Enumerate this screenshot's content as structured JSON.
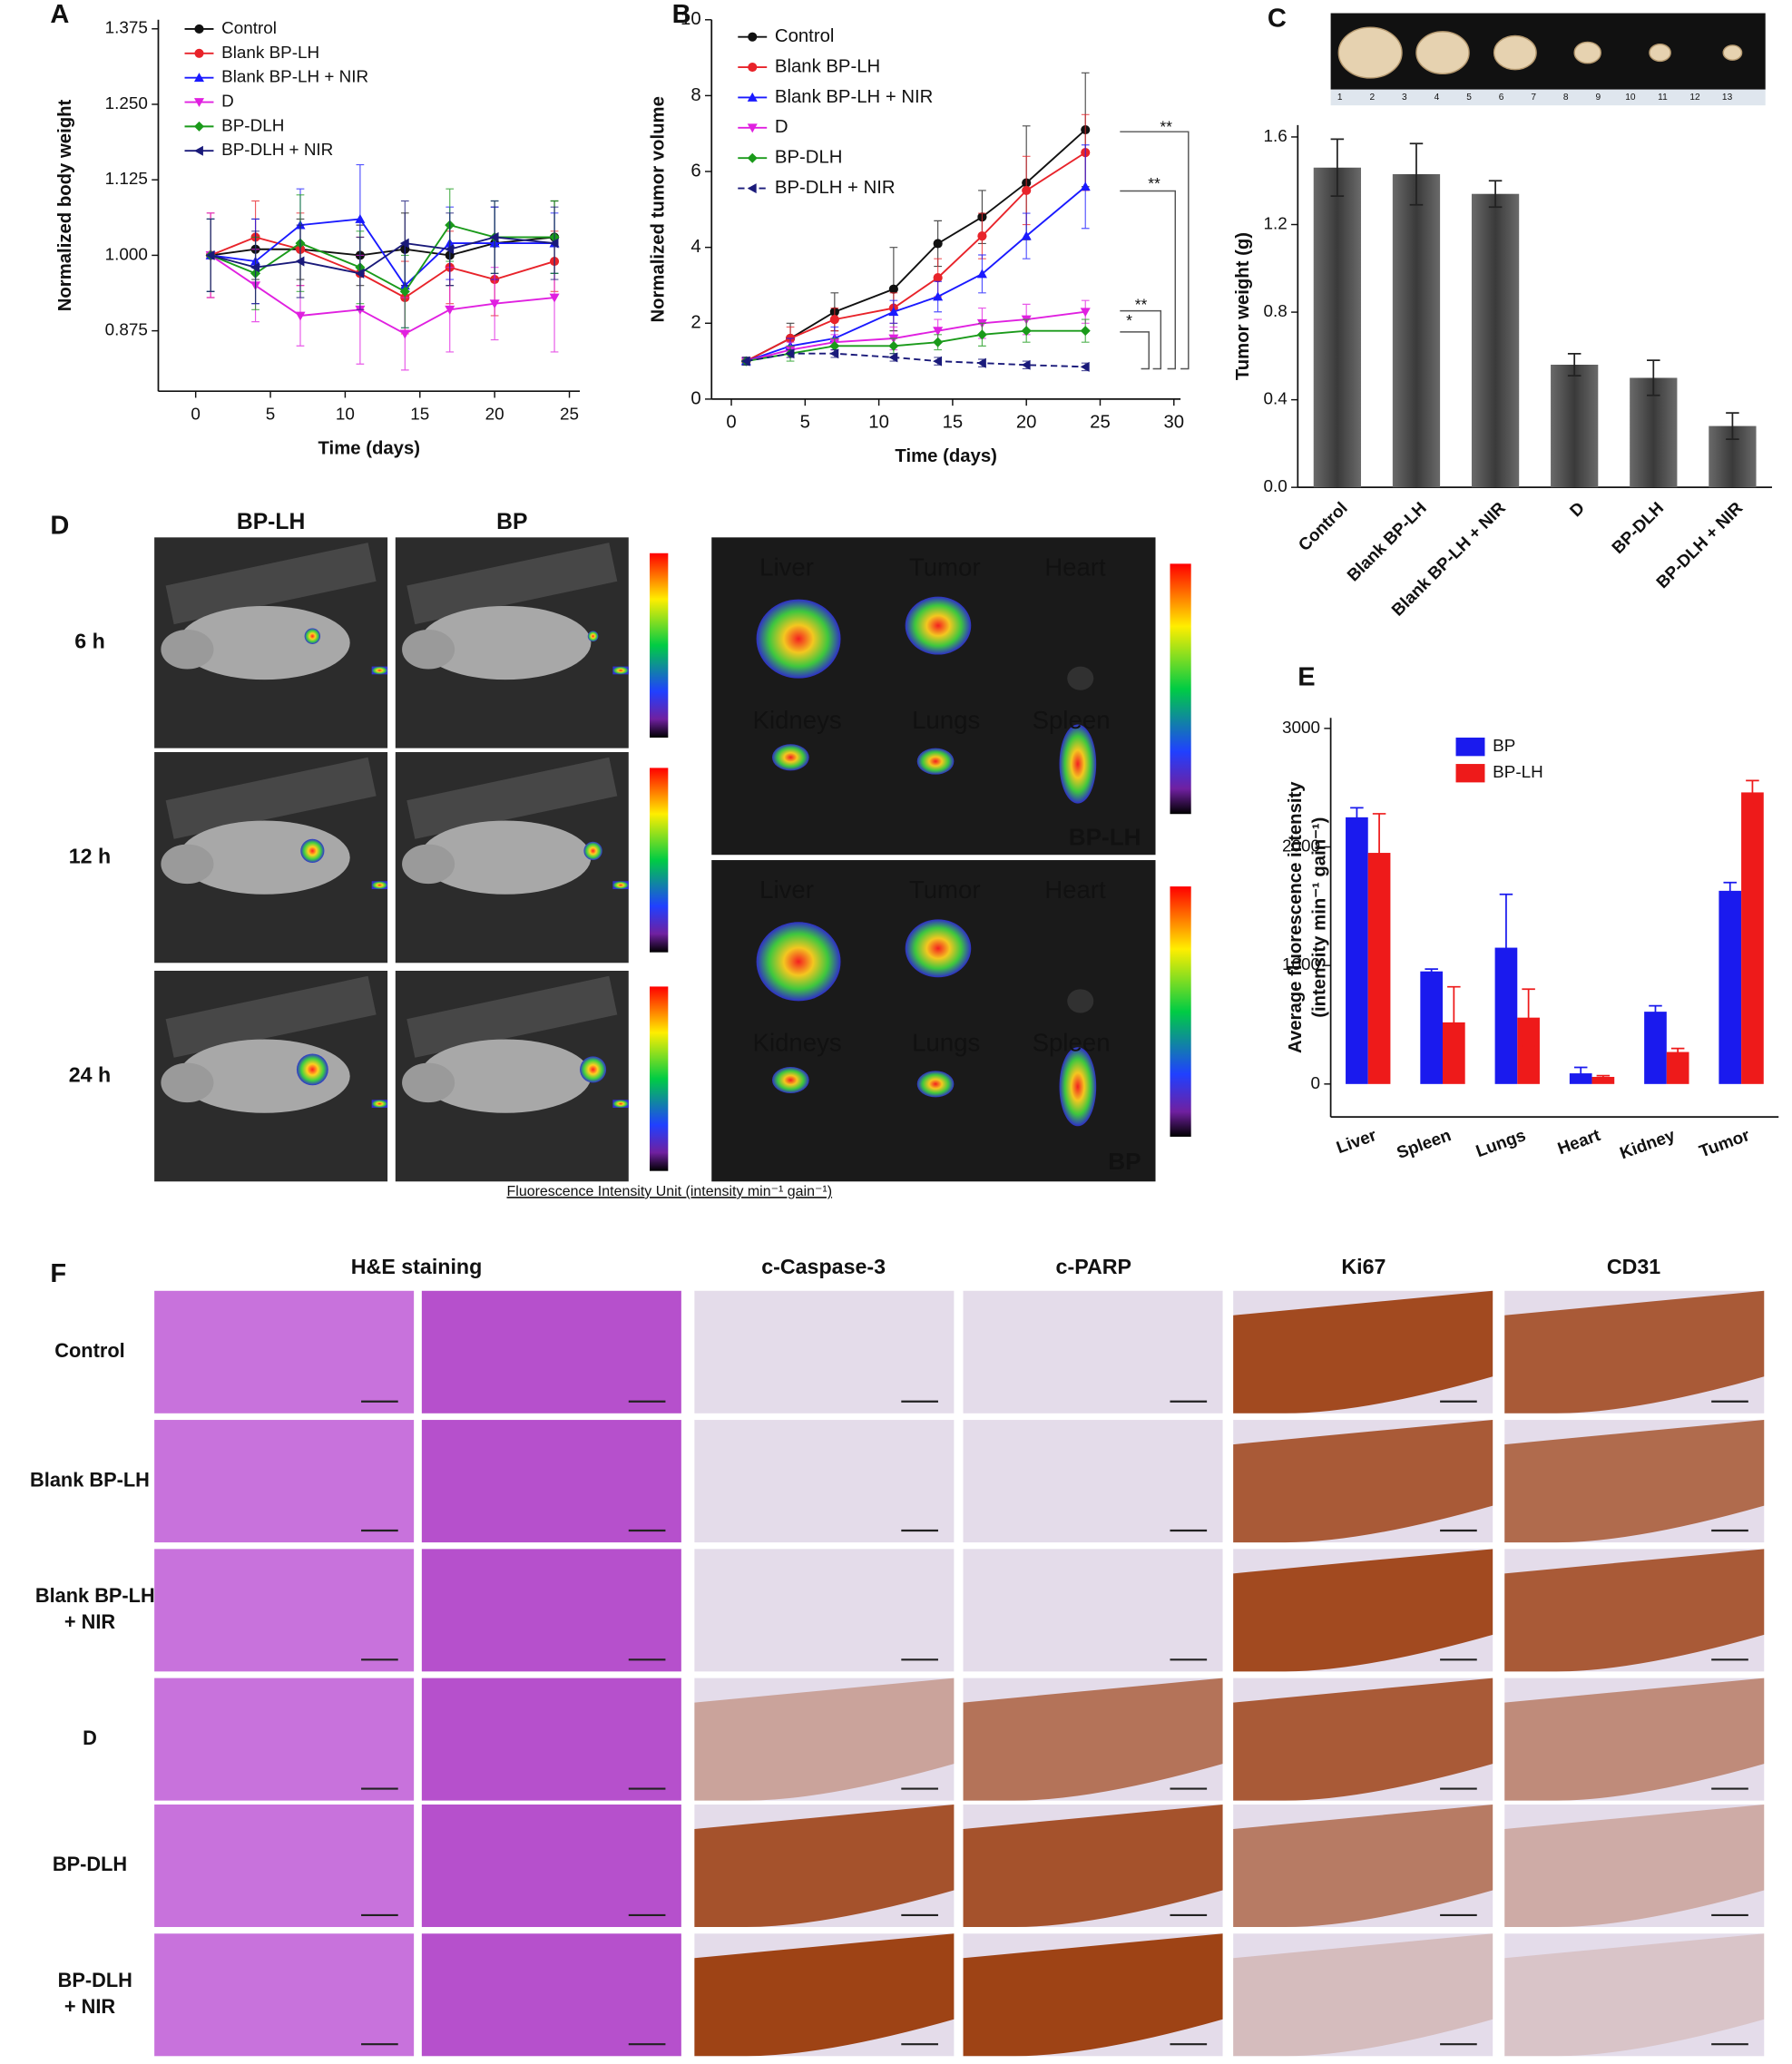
{
  "chart_data": [
    {
      "type": "line",
      "label": "A",
      "xlabel": "Time (days)",
      "ylabel": "Normalized body weight",
      "x": [
        1,
        4,
        7,
        11,
        14,
        17,
        20,
        24
      ],
      "xlim": [
        -2.5,
        25.7
      ],
      "xticks": [
        0,
        5,
        10,
        15,
        20,
        25
      ],
      "ylim": [
        0.775,
        1.39
      ],
      "yticks": [
        {
          "value": 0.875,
          "label": "0.875"
        },
        {
          "value": 1.0,
          "label": "1.000"
        },
        1.125,
        {
          "value": 1.25,
          "label": "1.250"
        },
        1.375
      ],
      "legend": "upper left",
      "series": [
        {
          "name": "Control",
          "color": "#111111",
          "marker": "circle",
          "values": [
            1.0,
            1.01,
            1.01,
            1.0,
            1.01,
            1.0,
            1.02,
            1.03
          ],
          "errors": [
            0.06,
            0.05,
            0.05,
            0.05,
            0.06,
            0.05,
            0.06,
            0.06
          ]
        },
        {
          "name": "Blank BP-LH",
          "color": "#e8232a",
          "marker": "circle",
          "values": [
            1.0,
            1.03,
            1.01,
            0.97,
            0.93,
            0.98,
            0.96,
            0.99
          ],
          "errors": [
            0.07,
            0.06,
            0.06,
            0.06,
            0.06,
            0.06,
            0.06,
            0.05
          ]
        },
        {
          "name": "Blank BP-LH + NIR",
          "color": "#1a1aff",
          "marker": "triangle-up",
          "values": [
            1.0,
            0.99,
            1.05,
            1.06,
            0.95,
            1.02,
            1.02,
            1.02
          ],
          "errors": [
            0.06,
            0.07,
            0.06,
            0.09,
            0.07,
            0.06,
            0.06,
            0.05
          ]
        },
        {
          "name": "D",
          "color": "#e020e0",
          "marker": "triangle-down",
          "values": [
            1.0,
            0.95,
            0.9,
            0.91,
            0.87,
            0.91,
            0.92,
            0.93
          ],
          "errors": [
            0.07,
            0.06,
            0.05,
            0.09,
            0.06,
            0.07,
            0.06,
            0.09
          ]
        },
        {
          "name": "BP-DLH",
          "color": "#1a9a1a",
          "marker": "diamond",
          "values": [
            1.0,
            0.97,
            1.02,
            0.98,
            0.94,
            1.05,
            1.03,
            1.03
          ],
          "errors": [
            0.06,
            0.06,
            0.08,
            0.06,
            0.06,
            0.06,
            0.06,
            0.06
          ]
        },
        {
          "name": "BP-DLH + NIR",
          "color": "#1a1a7a",
          "marker": "triangle-left",
          "values": [
            1.0,
            0.98,
            0.99,
            0.97,
            1.02,
            1.01,
            1.03,
            1.02
          ],
          "errors": [
            0.06,
            0.06,
            0.06,
            0.06,
            0.07,
            0.06,
            0.06,
            0.06
          ]
        }
      ]
    },
    {
      "type": "line",
      "label": "B",
      "xlabel": "Time (days)",
      "ylabel": "Normalized tumor volume",
      "x": [
        1,
        4,
        7,
        11,
        14,
        17,
        20,
        24
      ],
      "xlim": [
        -1.34,
        30.45
      ],
      "xticks": [
        0,
        5,
        10,
        15,
        20,
        25,
        30
      ],
      "ylim": [
        0,
        10
      ],
      "yticks": [
        0,
        2,
        4,
        6,
        8,
        10
      ],
      "legend": "upper left",
      "annotations": [
        "**",
        "**",
        "**",
        "*"
      ],
      "series": [
        {
          "name": "Control",
          "color": "#111111",
          "marker": "circle",
          "values": [
            1.0,
            1.6,
            2.3,
            2.9,
            4.1,
            4.8,
            5.7,
            7.1
          ],
          "errors": [
            0.1,
            0.4,
            0.5,
            1.1,
            0.6,
            0.7,
            1.5,
            1.5
          ]
        },
        {
          "name": "Blank BP-LH",
          "color": "#e8232a",
          "marker": "circle",
          "values": [
            1.0,
            1.6,
            2.1,
            2.4,
            3.2,
            4.3,
            5.5,
            6.5
          ],
          "errors": [
            0.1,
            0.3,
            0.3,
            0.4,
            0.5,
            0.6,
            0.9,
            1.0
          ]
        },
        {
          "name": "Blank BP-LH + NIR",
          "color": "#1a1aff",
          "marker": "triangle-up",
          "values": [
            1.0,
            1.4,
            1.6,
            2.3,
            2.7,
            3.3,
            4.3,
            5.6
          ],
          "errors": [
            0.1,
            0.2,
            0.3,
            0.3,
            0.4,
            0.5,
            0.6,
            1.1
          ]
        },
        {
          "name": "D",
          "color": "#e020e0",
          "marker": "triangle-down",
          "values": [
            1.0,
            1.3,
            1.5,
            1.6,
            1.8,
            2.0,
            2.1,
            2.3
          ],
          "errors": [
            0.1,
            0.2,
            0.2,
            0.3,
            0.3,
            0.4,
            0.4,
            0.3
          ]
        },
        {
          "name": "BP-DLH",
          "color": "#1a9a1a",
          "marker": "diamond",
          "values": [
            1.0,
            1.2,
            1.4,
            1.4,
            1.5,
            1.7,
            1.8,
            1.8
          ],
          "errors": [
            0.1,
            0.2,
            0.2,
            0.2,
            0.2,
            0.3,
            0.3,
            0.3
          ]
        },
        {
          "name": "BP-DLH + NIR",
          "color": "#1a1a7a",
          "marker": "triangle-left",
          "dashed": true,
          "values": [
            1.0,
            1.2,
            1.2,
            1.1,
            1.0,
            0.95,
            0.9,
            0.85
          ],
          "errors": [
            0.1,
            0.1,
            0.1,
            0.1,
            0.1,
            0.1,
            0.1,
            0.1
          ]
        }
      ]
    },
    {
      "type": "bar",
      "label": "C",
      "ylabel": "Tumor weight (g)",
      "categories": [
        "Control",
        "Blank BP-LH",
        "Blank BP-LH + NIR",
        "D",
        "BP-DLH",
        "BP-DLH + NIR"
      ],
      "values": [
        1.46,
        1.43,
        1.34,
        0.56,
        0.5,
        0.28
      ],
      "errors": [
        0.13,
        0.14,
        0.06,
        0.05,
        0.08,
        0.06
      ],
      "color": "#4a4a4a",
      "ylim": [
        0,
        1.654
      ],
      "yticks": [
        {
          "value": 0,
          "label": "0.0"
        },
        0.4,
        0.8,
        1.2,
        1.6
      ],
      "photo_ruler": [
        "1",
        "2",
        "3",
        "4",
        "5",
        "6",
        "7",
        "8",
        "9",
        "10",
        "11",
        "12",
        "13"
      ]
    },
    {
      "type": "bar",
      "label": "E",
      "ylabel": [
        "Average  fluorescence intensity",
        "(intensity min⁻¹ gain⁻¹)"
      ],
      "categories": [
        "Liver",
        "Spleen",
        "Lungs",
        "Heart",
        "Kidney",
        "Tumor"
      ],
      "ylim": [
        -278,
        3089
      ],
      "yticks": [
        0,
        1000,
        2000,
        3000
      ],
      "legend": "upper left",
      "series": [
        {
          "name": "BP",
          "color": "#1a1aee",
          "values": [
            2250,
            950,
            1150,
            90,
            610,
            1630
          ],
          "errors": [
            80,
            20,
            450,
            50,
            50,
            70
          ]
        },
        {
          "name": "BP-LH",
          "color": "#ee1a1a",
          "values": [
            1950,
            520,
            560,
            60,
            270,
            2460
          ],
          "errors": [
            330,
            300,
            240,
            10,
            30,
            100
          ]
        }
      ]
    }
  ],
  "panel_d": {
    "label": "D",
    "columns": [
      "BP-LH",
      "BP"
    ],
    "rows": [
      "6 h",
      "12 h",
      "24 h"
    ],
    "organ_images": [
      {
        "tag": "BP-LH",
        "organs": [
          "Liver",
          "Tumor",
          "Heart",
          "Kidneys",
          "Lungs",
          "Spleen"
        ]
      },
      {
        "tag": "BP",
        "organs": [
          "Liver",
          "Tumor",
          "Heart",
          "Kidneys",
          "Lungs",
          "Spleen"
        ]
      }
    ],
    "caption": "Fluorescence  Intensity Unit  (intensity min⁻¹ gain⁻¹)"
  },
  "panel_f": {
    "label": "F",
    "columns": [
      "H&E staining",
      "c-Caspase-3",
      "c-PARP",
      "Ki67",
      "CD31"
    ],
    "rows": [
      [
        "Control"
      ],
      [
        "Blank BP-LH"
      ],
      [
        "Blank BP-LH",
        "+ NIR"
      ],
      [
        "D"
      ],
      [
        "BP-DLH"
      ],
      [
        "BP-DLH",
        "+ NIR"
      ]
    ]
  }
}
